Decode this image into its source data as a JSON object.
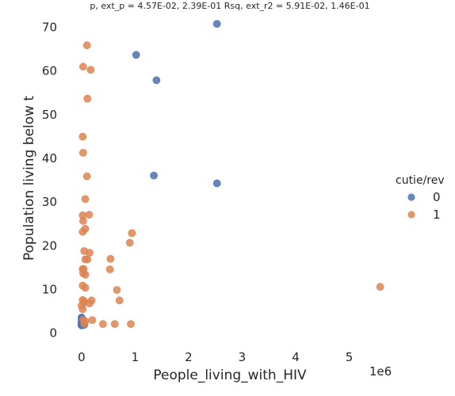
{
  "chart_data": {
    "type": "scatter",
    "title": "p, ext_p = 4.57E-02, 2.39E-01 Rsq, ext_r2 = 5.91E-02, 1.46E-01",
    "xlabel": "People_living_with_HIV",
    "ylabel": "Population living below t",
    "x_offset_label": "1e6",
    "x_ticks": [
      0,
      1,
      2,
      3,
      4,
      5
    ],
    "y_ticks": [
      0,
      10,
      20,
      30,
      40,
      50,
      60,
      70
    ],
    "xlim": [
      -0.28,
      6.0
    ],
    "ylim": [
      -3.5,
      73.0
    ],
    "grid": false,
    "legend": {
      "title": "cutie/rev",
      "placement": "right"
    },
    "series": [
      {
        "name": "0",
        "color": "#4c72b0",
        "points": [
          [
            2.53,
            70.8
          ],
          [
            1.02,
            63.7
          ],
          [
            1.4,
            57.9
          ],
          [
            1.35,
            36.1
          ],
          [
            2.53,
            34.3
          ],
          [
            0.0,
            3.6
          ],
          [
            0.01,
            3.3
          ],
          [
            0.0,
            3.0
          ],
          [
            0.02,
            2.7
          ],
          [
            0.0,
            2.4
          ],
          [
            0.01,
            2.2
          ],
          [
            0.03,
            2.1
          ],
          [
            0.0,
            2.0
          ],
          [
            0.02,
            1.9
          ],
          [
            0.04,
            2.0
          ],
          [
            0.01,
            2.5
          ],
          [
            0.03,
            2.3
          ],
          [
            0.0,
            1.8
          ],
          [
            0.05,
            1.9
          ]
        ]
      },
      {
        "name": "1",
        "color": "#dd8452",
        "points": [
          [
            0.1,
            65.9
          ],
          [
            0.03,
            61.0
          ],
          [
            0.17,
            60.3
          ],
          [
            0.11,
            53.7
          ],
          [
            0.02,
            45.0
          ],
          [
            0.03,
            41.3
          ],
          [
            0.1,
            35.9
          ],
          [
            0.07,
            30.7
          ],
          [
            0.02,
            27.0
          ],
          [
            0.14,
            27.1
          ],
          [
            0.03,
            25.7
          ],
          [
            0.07,
            23.9
          ],
          [
            0.02,
            23.2
          ],
          [
            0.94,
            22.9
          ],
          [
            0.9,
            20.7
          ],
          [
            0.05,
            18.8
          ],
          [
            0.15,
            18.4
          ],
          [
            0.07,
            16.9
          ],
          [
            0.11,
            16.9
          ],
          [
            0.54,
            17.0
          ],
          [
            0.02,
            14.7
          ],
          [
            0.04,
            14.7
          ],
          [
            0.53,
            14.6
          ],
          [
            0.03,
            13.7
          ],
          [
            0.07,
            13.4
          ],
          [
            0.02,
            10.9
          ],
          [
            0.07,
            10.4
          ],
          [
            0.66,
            9.9
          ],
          [
            0.02,
            7.6
          ],
          [
            0.04,
            7.0
          ],
          [
            0.05,
            7.3
          ],
          [
            0.19,
            7.5
          ],
          [
            0.15,
            6.8
          ],
          [
            0.71,
            7.5
          ],
          [
            0.0,
            6.3
          ],
          [
            0.02,
            5.5
          ],
          [
            0.03,
            3.1
          ],
          [
            0.07,
            2.7
          ],
          [
            0.2,
            3.0
          ],
          [
            0.4,
            2.1
          ],
          [
            0.62,
            2.1
          ],
          [
            0.92,
            2.1
          ],
          [
            0.05,
            2.1
          ],
          [
            5.58,
            10.6
          ]
        ]
      }
    ]
  }
}
